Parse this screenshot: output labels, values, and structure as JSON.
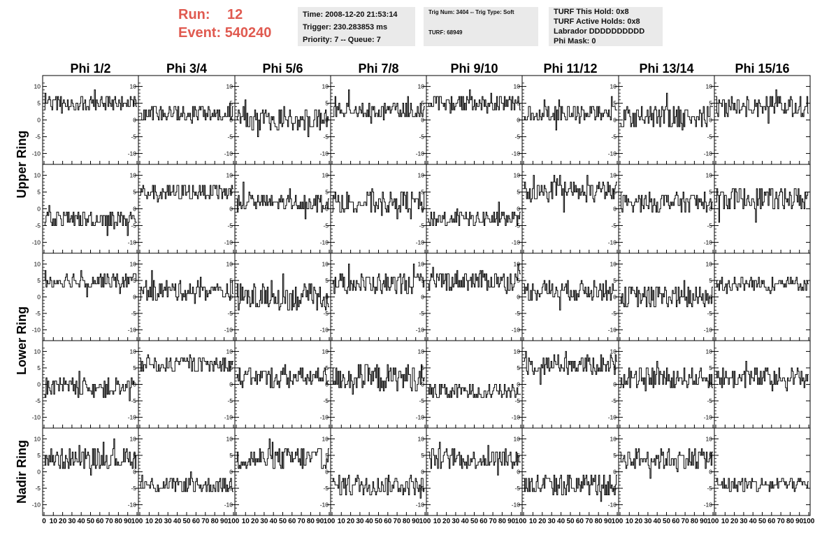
{
  "header": {
    "run_label": "Run:",
    "run_value": "12",
    "event_label": "Event:",
    "event_value": "540240",
    "accent_color": "#e05a50",
    "info1": [
      "Time: 2008-12-20 21:53:14",
      "Trigger: 230.283853 ms",
      "Priority: 7 -- Queue: 7"
    ],
    "info2": [
      "Trig Num: 3404 -- Trig Type: Soft",
      "TURF: 68949"
    ],
    "info3": [
      "TURF This Hold: 0x8",
      "TURF Active Holds: 0x8",
      "Labrador DDDDDDDDDD",
      "Phi Mask: 0"
    ]
  },
  "chart_data": {
    "type": "line",
    "columns": [
      "Phi 1/2",
      "Phi 3/4",
      "Phi 5/6",
      "Phi 7/8",
      "Phi 9/10",
      "Phi 11/12",
      "Phi 13/14",
      "Phi 15/16"
    ],
    "rings": [
      "Upper Ring",
      "Lower Ring",
      "Nadir Ring"
    ],
    "xlim": [
      0,
      100
    ],
    "ylim": [
      -12,
      12
    ],
    "y_ticks": [
      10,
      5,
      0,
      -5,
      -10
    ],
    "x_ticks": [
      0,
      10,
      20,
      30,
      40,
      50,
      60,
      70,
      80,
      90,
      100
    ],
    "x_tick_labels": [
      "0",
      "10",
      "20",
      "30",
      "40",
      "50",
      "60",
      "70",
      "80",
      "90",
      "100"
    ],
    "samples_per_trace": 96,
    "trace_levels": [
      [
        5,
        2,
        0,
        3,
        5,
        2,
        1,
        4
      ],
      [
        -3,
        5,
        2,
        2,
        -3,
        5,
        2,
        3
      ],
      [
        5,
        2,
        0,
        4,
        5,
        2,
        0,
        4
      ],
      [
        -1,
        6,
        2,
        2,
        -2,
        6,
        2,
        2
      ],
      [
        4,
        -4,
        4,
        -4,
        4,
        -4,
        4,
        -4
      ]
    ],
    "trace_spread": [
      [
        2.5,
        2.5,
        3.0,
        2.5,
        2.5,
        2.5,
        3.5,
        3.5
      ],
      [
        2.5,
        2.5,
        2.5,
        3.5,
        2.5,
        3.0,
        3.0,
        3.5
      ],
      [
        2.5,
        3.0,
        4.0,
        3.0,
        3.0,
        3.0,
        3.5,
        2.5
      ],
      [
        3.0,
        2.5,
        3.0,
        4.0,
        2.5,
        3.0,
        3.0,
        3.0
      ],
      [
        3.0,
        2.5,
        3.5,
        3.0,
        3.0,
        3.5,
        3.0,
        2.5
      ]
    ],
    "line_color": "#000000"
  }
}
